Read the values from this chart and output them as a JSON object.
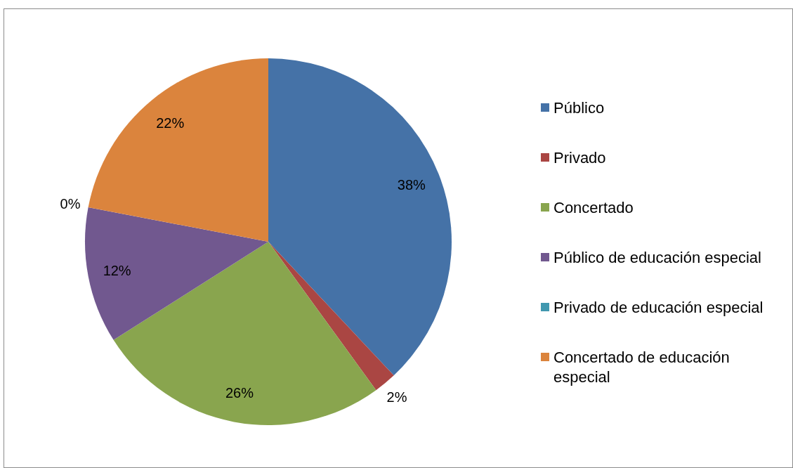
{
  "chart_data": {
    "type": "pie",
    "categories": [
      "Público",
      "Privado",
      "Concertado",
      "Público de educación especial",
      "Privado de educación especial",
      "Concertado de educación especial"
    ],
    "values": [
      38,
      2,
      26,
      12,
      0,
      22
    ],
    "colors": [
      "#4572a7",
      "#aa4643",
      "#89a54e",
      "#71588f",
      "#4198af",
      "#db843d"
    ],
    "value_labels": [
      "38%",
      "2%",
      "26%",
      "12%",
      "0%",
      "22%"
    ],
    "legend": "right"
  }
}
